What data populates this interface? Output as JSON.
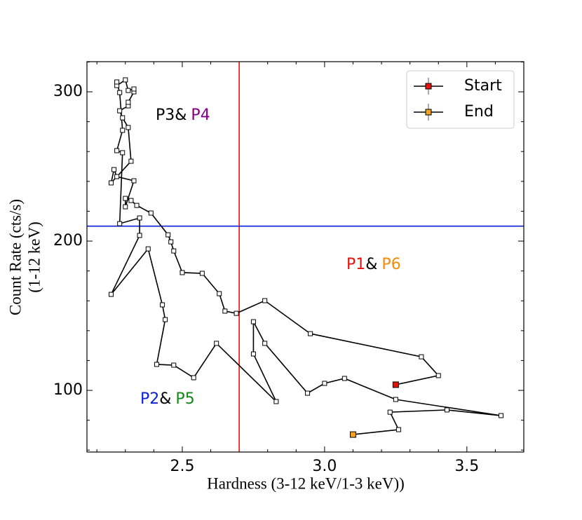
{
  "chart_data": {
    "type": "line",
    "xlabel": "Hardness (3-12 keV/1-3 keV))",
    "ylabel": [
      "Count Rate (cts/s)",
      "(1-12 keV)"
    ],
    "x": [
      3.25,
      3.4,
      3.34,
      2.95,
      2.79,
      2.69,
      2.65,
      2.63,
      2.57,
      2.5,
      2.47,
      2.46,
      2.45,
      2.39,
      2.34,
      2.32,
      2.3,
      2.3,
      2.33,
      2.27,
      2.26,
      2.25,
      2.32,
      2.31,
      2.29,
      2.28,
      2.31,
      2.31,
      2.33,
      2.33,
      2.31,
      2.3,
      2.27,
      2.27,
      2.28,
      2.29,
      2.27,
      2.29,
      2.28,
      2.35,
      2.35,
      2.25,
      2.38,
      2.43,
      2.44,
      2.41,
      2.47,
      2.54,
      2.62,
      2.83,
      2.75,
      2.75,
      2.79,
      2.94,
      3.0,
      3.07,
      3.25,
      3.62,
      3.43,
      3.23,
      3.26,
      3.1
    ],
    "values": [
      103.8,
      109.9,
      122.5,
      138.0,
      160.1,
      151.6,
      153.1,
      164.8,
      178.4,
      178.9,
      193.4,
      199.5,
      204.2,
      218.8,
      223.9,
      227.2,
      228.6,
      223.0,
      240.4,
      243.2,
      247.9,
      239.0,
      253.5,
      276.1,
      282.6,
      287.3,
      290.6,
      293.0,
      300.0,
      301.9,
      300.9,
      308.0,
      304.2,
      306.6,
      299.5,
      274.2,
      260.6,
      259.2,
      211.7,
      215.5,
      203.8,
      164.3,
      194.8,
      157.3,
      147.4,
      117.4,
      116.9,
      108.5,
      131.5,
      92.5,
      124.4,
      146.0,
      131.5,
      98.1,
      104.7,
      108.0,
      93.9,
      83.1,
      86.9,
      85.4,
      73.7,
      70.4
    ],
    "color": "#000000",
    "legend": [
      {
        "name": "Start",
        "color": "#e8120c"
      },
      {
        "name": "End",
        "color": "#f5a11a"
      }
    ],
    "legend_position": "upper right",
    "xlim": [
      2.165,
      3.7
    ],
    "ylim": [
      58.7,
      320.2
    ],
    "xticks": [
      2.5,
      {
        "value": 3,
        "label": "3.0"
      },
      3.5
    ],
    "yticks": [
      100,
      200,
      300
    ],
    "xminorticks": [
      2.2,
      2.3,
      2.4,
      2.6,
      2.7,
      2.8,
      2.9,
      3.1,
      3.2,
      3.3,
      3.4,
      3.6
    ],
    "yminorticks": [
      60,
      80,
      120,
      140,
      160,
      180,
      220,
      240,
      260,
      280,
      320
    ],
    "vlines": [
      {
        "value": 2.7,
        "color": "#e8120c"
      }
    ],
    "hlines": [
      {
        "value": 210,
        "color": "#0a1fd8"
      }
    ],
    "annotations": [
      [
        {
          "text": "P3",
          "color": "#000000"
        },
        {
          "text": "&",
          "color": "#000000"
        },
        {
          "text": "P4",
          "color": "#800080"
        }
      ],
      [
        {
          "text": "P1",
          "color": "#e8120c"
        },
        {
          "text": "&",
          "color": "#000000"
        },
        {
          "text": "P6",
          "color": "#f58a0c"
        }
      ],
      [
        {
          "text": "P2",
          "color": "#0a1fd8"
        },
        {
          "text": "&",
          "color": "#000000"
        },
        {
          "text": "P5",
          "color": "#138a13"
        }
      ]
    ]
  }
}
